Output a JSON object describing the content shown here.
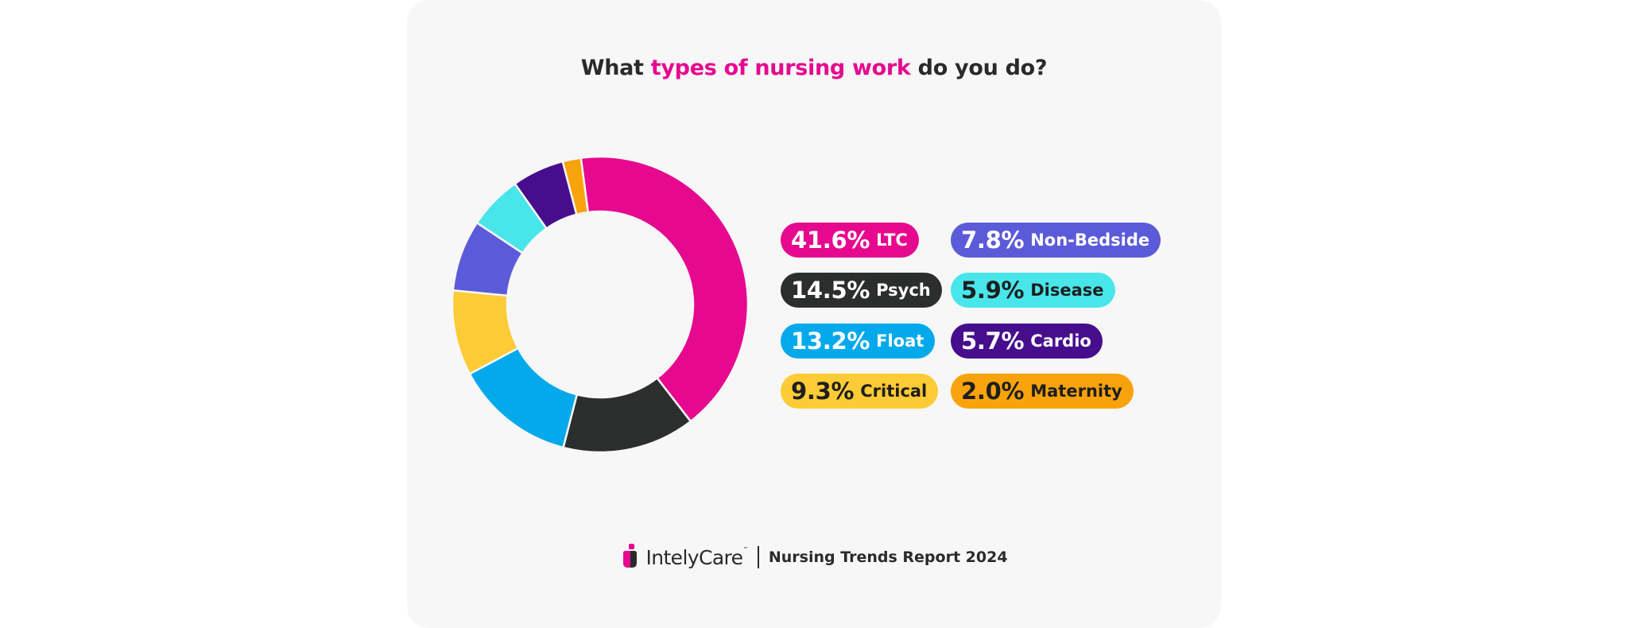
{
  "title": {
    "prefix": "What ",
    "accent": "types of nursing work",
    "suffix": " do you do?"
  },
  "colors": {
    "accent": "#e6098f",
    "LTC": "#e6098f",
    "Psych": "#2c2e2e",
    "Float": "#03a9eb",
    "Critical": "#fdcb35",
    "Non-Bedside": "#5b5bd9",
    "Disease": "#48e6ea",
    "Cardio": "#460e8c",
    "Maternity": "#f9a30c"
  },
  "chart_data": {
    "type": "pie",
    "donut": true,
    "categories": [
      "LTC",
      "Psych",
      "Float",
      "Critical",
      "Non-Bedside",
      "Disease",
      "Cardio",
      "Maternity"
    ],
    "values": [
      41.6,
      14.5,
      13.2,
      9.3,
      7.8,
      5.9,
      5.7,
      2.0
    ],
    "labels": [
      "41.6%",
      "14.5%",
      "13.2%",
      "9.3%",
      "7.8%",
      "5.9%",
      "5.7%",
      "2.0%"
    ]
  },
  "footer": {
    "brand": "IntelyCare",
    "trademark": "™",
    "report": "Nursing Trends Report 2024"
  }
}
